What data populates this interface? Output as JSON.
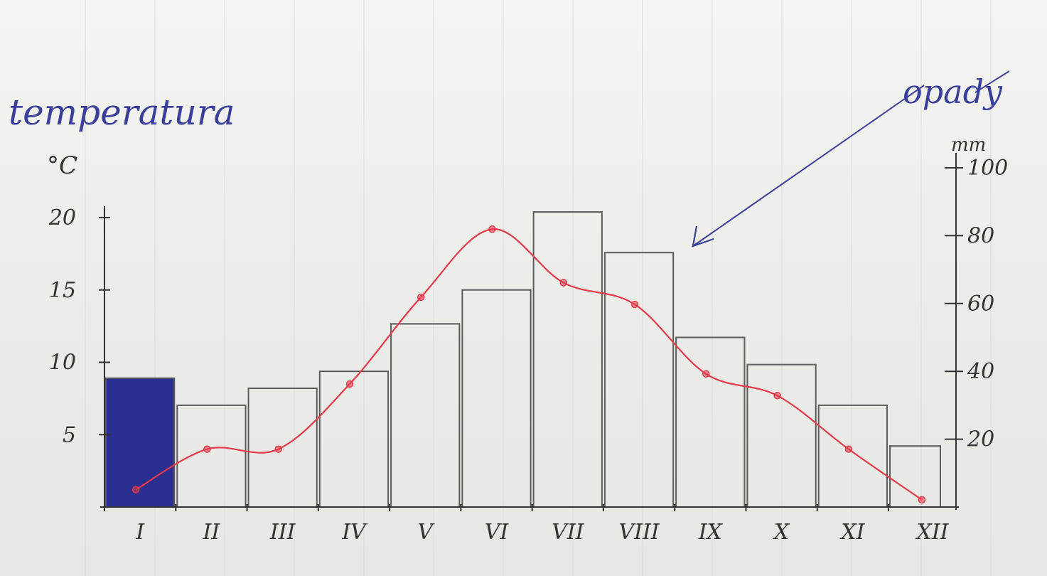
{
  "chart_data": {
    "type": "bar+line",
    "title": "",
    "categories": [
      "I",
      "II",
      "III",
      "IV",
      "V",
      "VI",
      "VII",
      "VIII",
      "IX",
      "X",
      "XI",
      "XII"
    ],
    "series": [
      {
        "name": "opady",
        "type": "bar",
        "axis": "right",
        "values": [
          38,
          30,
          35,
          40,
          54,
          64,
          87,
          75,
          50,
          42,
          30,
          18
        ]
      },
      {
        "name": "temperatura",
        "type": "line",
        "axis": "left",
        "values": [
          1.2,
          4.0,
          4.0,
          8.5,
          14.5,
          19.2,
          15.5,
          14.0,
          9.2,
          7.7,
          4.0,
          0.5
        ]
      }
    ],
    "left_axis": {
      "label": "temperatura",
      "unit": "°C",
      "ylim": [
        0,
        20
      ],
      "ticks": [
        "5",
        "10",
        "15",
        "20"
      ]
    },
    "right_axis": {
      "label": "opady",
      "unit": "mm",
      "ylim": [
        0,
        100
      ],
      "ticks": [
        "20",
        "40",
        "60",
        "80",
        "100"
      ]
    },
    "grid": false,
    "highlighted_category": "I",
    "colors": {
      "bars": "#5c5c5c",
      "line": "#e23a4a",
      "highlight": "#2a2e8f",
      "annotation": "#3a3f9a",
      "ink": "#333333"
    }
  }
}
